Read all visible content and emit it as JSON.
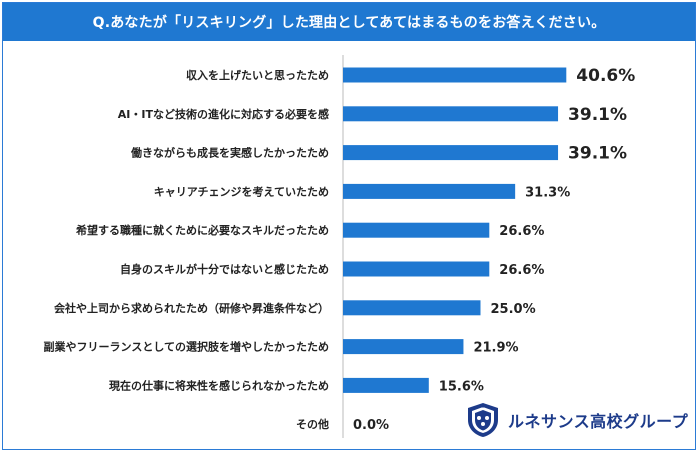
{
  "chart_data": {
    "type": "bar",
    "orientation": "horizontal",
    "title": "Q.あなたが「リスキリング」した理由としてあてはまるものをお答えください。",
    "categories": [
      "収入を上げたいと思ったため",
      "AI・ITなど技術の進化に対応する必要を感",
      "働きながらも成長を実感したかったため",
      "キャリアチェンジを考えていたため",
      "希望する職種に就くために必要なスキルだったため",
      "自身のスキルが十分ではないと感じたため",
      "会社や上司から求められたため（研修や昇進条件など）",
      "副業やフリーランスとしての選択肢を増やしたかったため",
      "現在の仕事に将来性を感じられなかったため",
      "その他"
    ],
    "values": [
      40.6,
      39.1,
      39.1,
      31.3,
      26.6,
      26.6,
      25.0,
      21.9,
      15.6,
      0.0
    ],
    "value_labels": [
      "40.6%",
      "39.1%",
      "39.1%",
      "31.3%",
      "26.6%",
      "26.6%",
      "25.0%",
      "21.9%",
      "15.6%",
      "0.0%"
    ],
    "xlim": [
      0,
      50
    ],
    "grid": false,
    "legend": "none",
    "colors": {
      "bar": "#1f78d1",
      "highlight_label": "#1d2f6f",
      "label": "#222222"
    }
  },
  "logo": {
    "text": "ルネサンス高校グループ",
    "icon": "shield-crest-icon",
    "color": "#1d3b8a"
  }
}
